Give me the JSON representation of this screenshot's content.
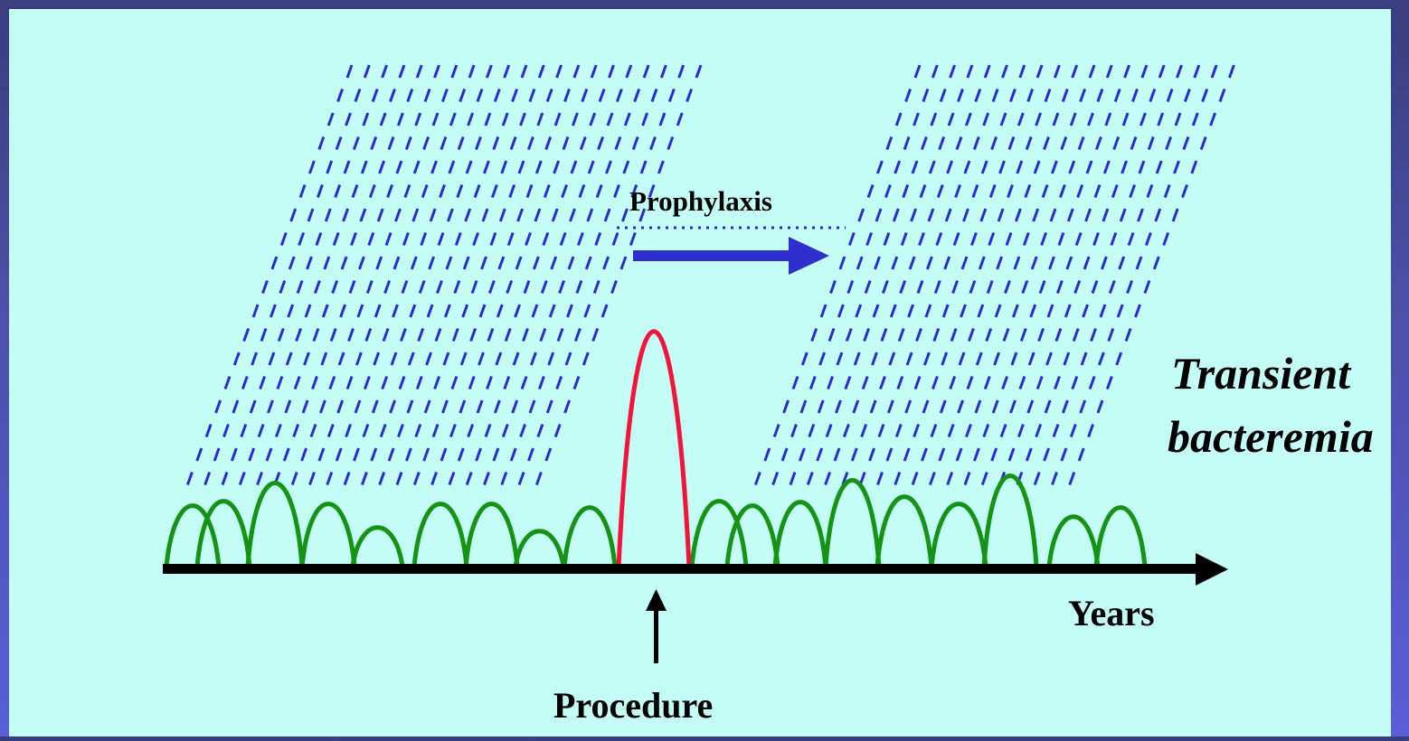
{
  "labels": {
    "prophylaxis": "Prophylaxis",
    "transient_line1": "Transient",
    "transient_line2": "bacteremia",
    "years": "Years",
    "procedure": "Procedure"
  },
  "colors": {
    "panel_background": "#c4fcf6",
    "hatch": "#2b2bd6",
    "baseline_bacteremia": "#159315",
    "procedure_bacteremia": "#f2143a",
    "prophylaxis_arrow": "#2f2fd0",
    "axis": "#000000"
  }
}
